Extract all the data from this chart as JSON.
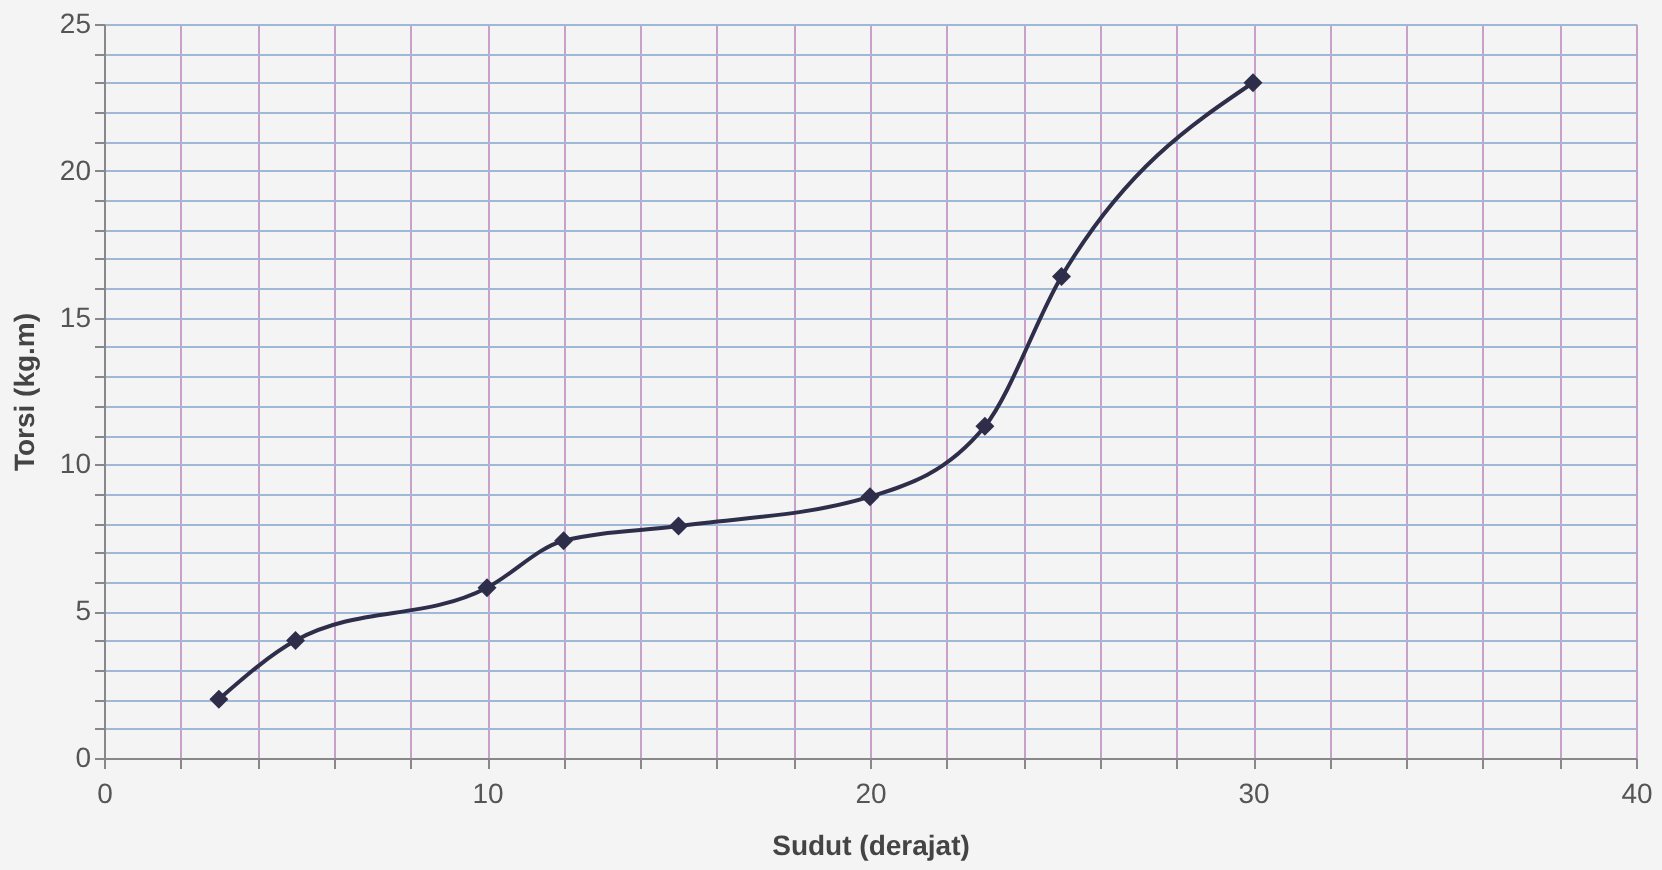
{
  "chart_data": {
    "type": "line",
    "xlabel": "Sudut (derajat)",
    "ylabel": "Torsi (kg.m)",
    "x": [
      3,
      5,
      10,
      12,
      15,
      20,
      23,
      25,
      30
    ],
    "series": [
      {
        "color": "#2e2e4a",
        "values": [
          2,
          4,
          5.8,
          7.4,
          7.9,
          8.9,
          11.3,
          16.4,
          23
        ]
      }
    ],
    "xlim": [
      0,
      40
    ],
    "ylim": [
      0,
      25
    ],
    "xticks": [
      0,
      {
        "value": 2,
        "label": null
      },
      {
        "value": 4,
        "label": null
      },
      {
        "value": 6,
        "label": null
      },
      {
        "value": 8,
        "label": null
      },
      10,
      {
        "value": 12,
        "label": null
      },
      {
        "value": 14,
        "label": null
      },
      {
        "value": 16,
        "label": null
      },
      {
        "value": 18,
        "label": null
      },
      20,
      {
        "value": 22,
        "label": null
      },
      {
        "value": 24,
        "label": null
      },
      {
        "value": 26,
        "label": null
      },
      {
        "value": 28,
        "label": null
      },
      30,
      {
        "value": 32,
        "label": null
      },
      {
        "value": 34,
        "label": null
      },
      {
        "value": 36,
        "label": null
      },
      {
        "value": 38,
        "label": null
      },
      40
    ],
    "yticks": [
      0,
      {
        "value": 1,
        "label": null
      },
      {
        "value": 2,
        "label": null
      },
      {
        "value": 3,
        "label": null
      },
      {
        "value": 4,
        "label": null
      },
      5,
      {
        "value": 6,
        "label": null
      },
      {
        "value": 7,
        "label": null
      },
      {
        "value": 8,
        "label": null
      },
      {
        "value": 9,
        "label": null
      },
      10,
      {
        "value": 11,
        "label": null
      },
      {
        "value": 12,
        "label": null
      },
      {
        "value": 13,
        "label": null
      },
      {
        "value": 14,
        "label": null
      },
      15,
      {
        "value": 16,
        "label": null
      },
      {
        "value": 17,
        "label": null
      },
      {
        "value": 18,
        "label": null
      },
      {
        "value": 19,
        "label": null
      },
      20,
      {
        "value": 21,
        "label": null
      },
      {
        "value": 22,
        "label": null
      },
      {
        "value": 23,
        "label": null
      },
      {
        "value": 24,
        "label": null
      },
      25
    ],
    "grid": true,
    "marker": "diamond",
    "line_style": "solid"
  }
}
